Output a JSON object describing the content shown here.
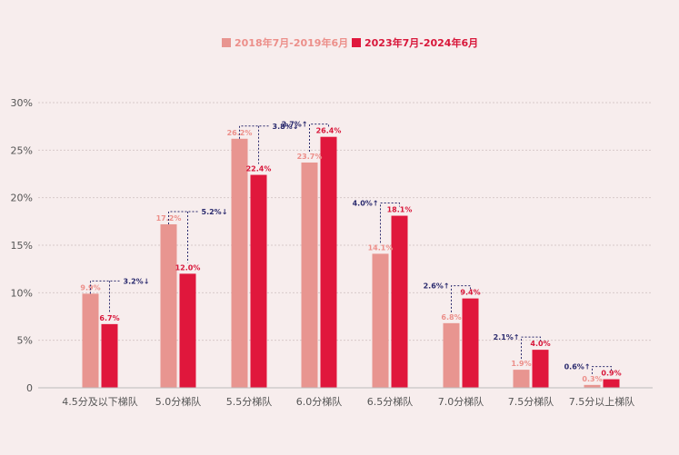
{
  "chart_data": {
    "type": "bar",
    "title": "",
    "xlabel": "",
    "ylabel": "",
    "ylim": [
      0,
      30
    ],
    "yticks": [
      0,
      5,
      10,
      15,
      20,
      25,
      30
    ],
    "ytick_labels": [
      "0",
      "5%",
      "10%",
      "15%",
      "20%",
      "25%",
      "30%"
    ],
    "grid": true,
    "legend_position": "top-center",
    "categories": [
      "4.5分及以下梯队",
      "5.0分梯队",
      "5.5分梯队",
      "6.0分梯队",
      "6.5分梯队",
      "7.0分梯队",
      "7.5分梯队",
      "7.5分以上梯队"
    ],
    "series": [
      {
        "name": "2018年7月-2019年6月",
        "color": "#e89590",
        "label_color": "#ec8f8a",
        "values": [
          9.9,
          17.2,
          26.2,
          23.7,
          14.1,
          6.8,
          1.9,
          0.3
        ],
        "labels": [
          "9.9%",
          "17.2%",
          "26.2%",
          "23.7%",
          "14.1%",
          "6.8%",
          "1.9%",
          "0.3%"
        ]
      },
      {
        "name": "2023年7月-2024年6月",
        "color": "#e0173c",
        "label_color": "#d8173a",
        "values": [
          6.7,
          12.0,
          22.4,
          26.4,
          18.1,
          9.4,
          4.0,
          0.9
        ],
        "labels": [
          "6.7%",
          "12.0%",
          "22.4%",
          "26.4%",
          "18.1%",
          "9.4%",
          "4.0%",
          "0.9%"
        ]
      }
    ],
    "changes": [
      {
        "text": "3.2%↓",
        "dir": "down"
      },
      {
        "text": "5.2%↓",
        "dir": "down"
      },
      {
        "text": "3.8%↓",
        "dir": "down"
      },
      {
        "text": "2.7%↑",
        "dir": "up"
      },
      {
        "text": "4.0%↑",
        "dir": "up"
      },
      {
        "text": "2.6%↑",
        "dir": "up"
      },
      {
        "text": "2.1%↑",
        "dir": "up"
      },
      {
        "text": "0.6%↑",
        "dir": "up"
      }
    ],
    "colors": {
      "grid": "#d7c9c9",
      "axis": "#bbbbbb",
      "connector": "#2b2b6e",
      "background": "#f7eded"
    }
  }
}
